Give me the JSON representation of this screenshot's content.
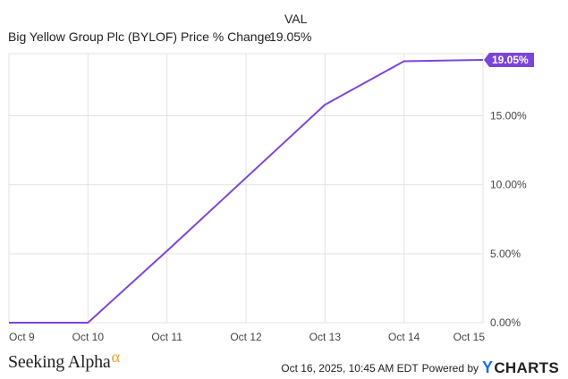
{
  "legend": {
    "value_header": "VAL",
    "series_name": "Big Yellow Group Plc (BYLOF) Price % Change",
    "series_value": "19.05%"
  },
  "chart_data": {
    "type": "line",
    "x": [
      "Oct 9",
      "Oct 10",
      "Oct 11",
      "Oct 12",
      "Oct 13",
      "Oct 14",
      "Oct 15"
    ],
    "series": [
      {
        "name": "Big Yellow Group Plc (BYLOF) Price % Change",
        "values": [
          0.0,
          0.0,
          5.2,
          10.5,
          15.8,
          18.95,
          19.05
        ],
        "color": "#7b45d9"
      }
    ],
    "y_ticks": [
      "0.00%",
      "5.00%",
      "10.00%",
      "15.00%"
    ],
    "y_tick_values": [
      0,
      5,
      10,
      15
    ],
    "ylim": [
      0,
      19.5
    ],
    "y_axis_side": "right",
    "grid": true,
    "last_value_label": "19.05%"
  },
  "footer": {
    "brand_name": "Seeking Alpha",
    "brand_symbol": "α",
    "timestamp": "Oct 16, 2025, 10:45 AM EDT",
    "powered_by": "Powered by",
    "provider_initial": "Y",
    "provider_rest": "CHARTS"
  },
  "colors": {
    "line": "#7b45d9",
    "grid": "#e3e3e3",
    "ycharts_blue": "#1d6fd3",
    "alpha_orange": "#f0a020"
  }
}
